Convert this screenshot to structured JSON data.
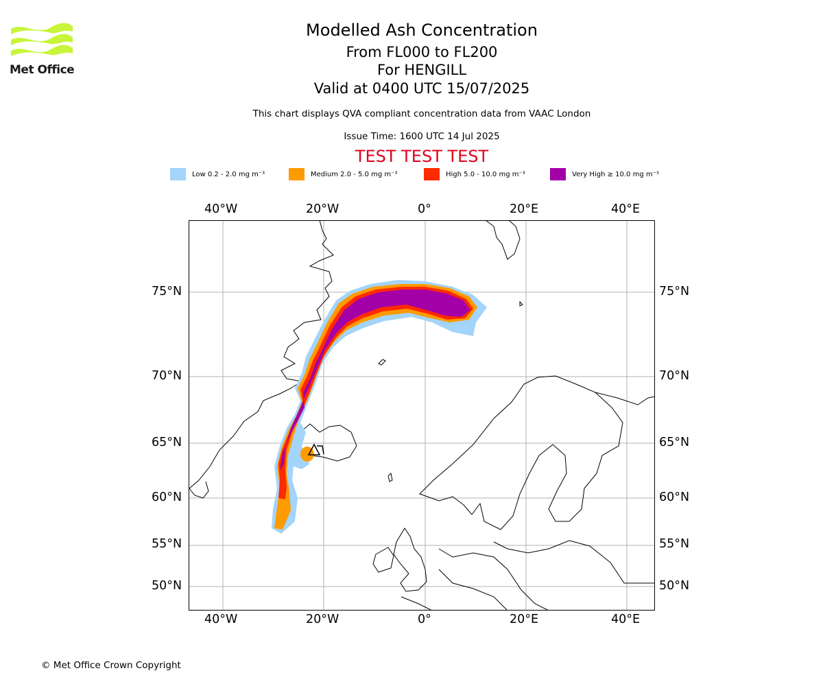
{
  "logo": {
    "text": "Met Office",
    "color": "#c8f53a"
  },
  "titles": {
    "main": "Modelled Ash Concentration",
    "levels": "From FL000 to FL200",
    "volcano": "For HENGILL",
    "valid": "Valid at 0400 UTC 15/07/2025",
    "source": "This chart displays QVA compliant concentration data from VAAC London",
    "issue": "Issue Time: 1600 UTC 14 Jul 2025",
    "test": "TEST TEST TEST"
  },
  "legend": [
    {
      "label": "Low 0.2 - 2.0 mg m⁻³",
      "color": "#a3d4fa"
    },
    {
      "label": "Medium 2.0 - 5.0 mg m⁻³",
      "color": "#ff9a00"
    },
    {
      "label": "High 5.0 - 10.0 mg m⁻³",
      "color": "#ff2a00"
    },
    {
      "label": "Very High ≥ 10.0 mg m⁻³",
      "color": "#a300a8"
    }
  ],
  "axes": {
    "lon_labels": [
      "40°W",
      "20°W",
      "0°",
      "20°E",
      "40°E"
    ],
    "lat_labels": [
      "75°N",
      "70°N",
      "65°N",
      "60°N",
      "55°N",
      "50°N"
    ]
  },
  "copyright": "© Met Office Crown Copyright"
}
